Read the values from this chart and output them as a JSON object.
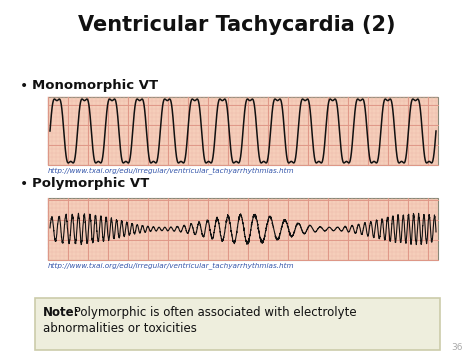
{
  "title": "Ventricular Tachycardia (2)",
  "bg_color": "#ffffff",
  "title_color": "#111111",
  "title_fontsize": 15,
  "bullet1": "Monomorphic VT",
  "bullet2": "Polymorphic VT",
  "url": "http://www.txai.org/edu/irregular/ventricular_tachyarrhythmias.htm",
  "note_bold": "Note:",
  "note_rest": " Polymorphic is often associated with electrolyte\nabnormalities or toxicities",
  "ecg_bg": "#f5ceba",
  "ecg_grid_major": "#e09888",
  "ecg_grid_minor": "#edb8a8",
  "ecg_line_color": "#111111",
  "slide_number": "36",
  "note_box_bg": "#eeeedd",
  "note_box_edge": "#ccccaa"
}
